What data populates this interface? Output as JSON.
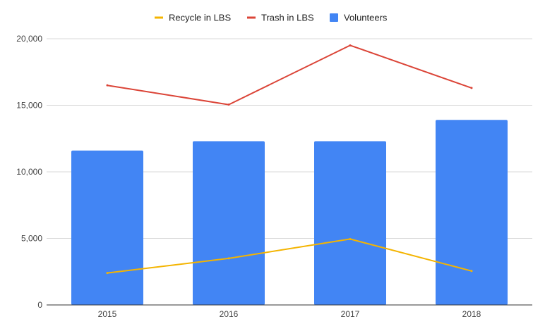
{
  "chart_data": {
    "type": "bar",
    "categories": [
      "2015",
      "2016",
      "2017",
      "2018"
    ],
    "series": [
      {
        "name": "Volunteers",
        "kind": "bar",
        "color": "#4285f4",
        "values": [
          11600,
          12300,
          12300,
          13900
        ]
      },
      {
        "name": "Trash in LBS",
        "kind": "line",
        "color": "#db4437",
        "values": [
          16500,
          15050,
          19500,
          16300
        ]
      },
      {
        "name": "Recycle in LBS",
        "kind": "line",
        "color": "#f4b400",
        "values": [
          2400,
          3500,
          4950,
          2550
        ]
      }
    ],
    "legend": {
      "position": "top-center",
      "items": [
        {
          "label": "Recycle in LBS",
          "color": "#f4b400",
          "marker": "line"
        },
        {
          "label": "Trash in LBS",
          "color": "#db4437",
          "marker": "line"
        },
        {
          "label": "Volunteers",
          "color": "#4285f4",
          "marker": "square"
        }
      ]
    },
    "y_axis": {
      "ylim": [
        0,
        20000
      ],
      "ticks": [
        0,
        5000,
        10000,
        15000,
        20000
      ],
      "tick_labels": [
        "0",
        "5,000",
        "10,000",
        "15,000",
        "20,000"
      ],
      "grid": true
    },
    "x_axis": {
      "tick_labels": [
        "2015",
        "2016",
        "2017",
        "2018"
      ]
    }
  }
}
